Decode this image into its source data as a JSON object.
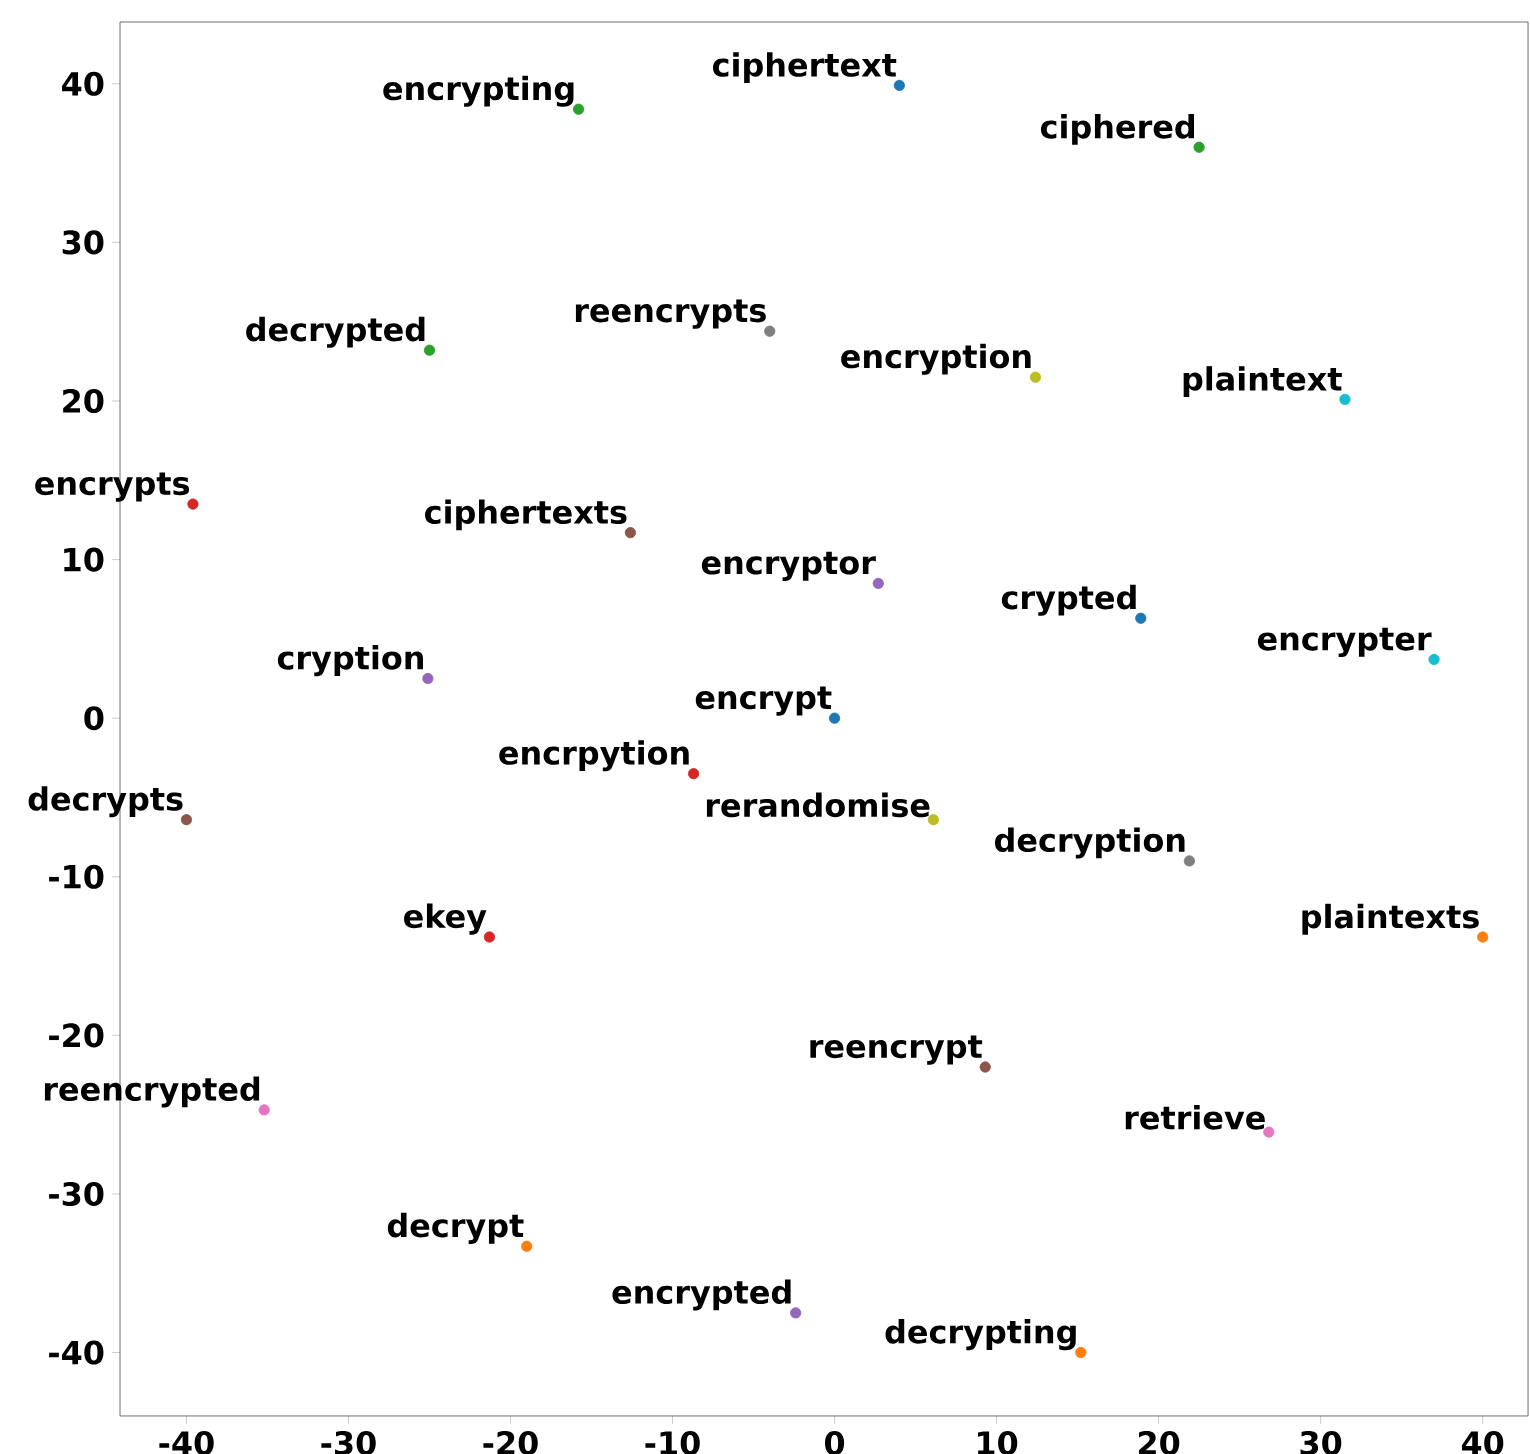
{
  "chart_data": {
    "type": "scatter",
    "x": [
      4.0,
      -15.8,
      22.5,
      -4.0,
      -25.0,
      12.4,
      31.5,
      -39.6,
      -12.6,
      2.7,
      18.9,
      37.0,
      -25.1,
      0.0,
      -8.7,
      -40.0,
      6.1,
      21.9,
      -21.3,
      40.0,
      9.3,
      -35.2,
      26.8,
      -19.0,
      -2.4,
      15.2
    ],
    "values": [
      39.9,
      38.4,
      36.0,
      24.4,
      23.2,
      21.5,
      20.1,
      13.5,
      11.7,
      8.5,
      6.3,
      3.7,
      2.5,
      0.0,
      -3.5,
      -6.4,
      -6.4,
      -9.0,
      -13.8,
      -13.8,
      -22.0,
      -24.7,
      -26.1,
      -33.3,
      -37.5,
      -40.0
    ],
    "colors": [
      "#1f77b4",
      "#2ca02c",
      "#2ca02c",
      "#7f7f7f",
      "#2ca02c",
      "#bcbd22",
      "#17becf",
      "#d62728",
      "#8c564b",
      "#9467bd",
      "#1f77b4",
      "#17becf",
      "#9467bd",
      "#1f77b4",
      "#d62728",
      "#8c564b",
      "#bcbd22",
      "#7f7f7f",
      "#d62728",
      "#ff7f0e",
      "#8c564b",
      "#e377c2",
      "#e377c2",
      "#ff7f0e",
      "#9467bd",
      "#ff7f0e"
    ],
    "marker": "circle",
    "xlim": [
      -44.1,
      42.8
    ],
    "ylim": [
      -44.0,
      43.9
    ],
    "xticks": [
      -40,
      -30,
      -20,
      -10,
      0,
      10,
      20,
      30,
      40
    ],
    "yticks": [
      -40,
      -30,
      -20,
      -10,
      0,
      10,
      20,
      30,
      40
    ],
    "annotations": [
      {
        "text": "ciphertext",
        "x": 4.0,
        "y": 39.9
      },
      {
        "text": "encrypting",
        "x": -15.8,
        "y": 38.4
      },
      {
        "text": "ciphered",
        "x": 22.5,
        "y": 36.0
      },
      {
        "text": "reencrypts",
        "x": -4.0,
        "y": 24.4
      },
      {
        "text": "decrypted",
        "x": -25.0,
        "y": 23.2
      },
      {
        "text": "encryption",
        "x": 12.4,
        "y": 21.5
      },
      {
        "text": "plaintext",
        "x": 31.5,
        "y": 20.1
      },
      {
        "text": "encrypts",
        "x": -39.6,
        "y": 13.5
      },
      {
        "text": "ciphertexts",
        "x": -12.6,
        "y": 11.7
      },
      {
        "text": "encryptor",
        "x": 2.7,
        "y": 8.5
      },
      {
        "text": "crypted",
        "x": 18.9,
        "y": 6.3
      },
      {
        "text": "encrypter",
        "x": 37.0,
        "y": 3.7
      },
      {
        "text": "cryption",
        "x": -25.1,
        "y": 2.5
      },
      {
        "text": "encrypt",
        "x": 0.0,
        "y": 0.0
      },
      {
        "text": "encrpytion",
        "x": -8.7,
        "y": -3.5
      },
      {
        "text": "decrypts",
        "x": -40.0,
        "y": -6.4
      },
      {
        "text": "rerandomise",
        "x": 6.1,
        "y": -6.4
      },
      {
        "text": "decryption",
        "x": 21.9,
        "y": -9.0
      },
      {
        "text": "ekey",
        "x": -21.3,
        "y": -13.8
      },
      {
        "text": "plaintexts",
        "x": 40.0,
        "y": -13.8
      },
      {
        "text": "reencrypt",
        "x": 9.3,
        "y": -22.0
      },
      {
        "text": "reencrypted",
        "x": -35.2,
        "y": -24.7
      },
      {
        "text": "retrieve",
        "x": 26.8,
        "y": -26.1
      },
      {
        "text": "decrypt",
        "x": -19.0,
        "y": -33.3
      },
      {
        "text": "encrypted",
        "x": -2.4,
        "y": -37.5
      },
      {
        "text": "decrypting",
        "x": 15.2,
        "y": -40.0
      }
    ]
  }
}
